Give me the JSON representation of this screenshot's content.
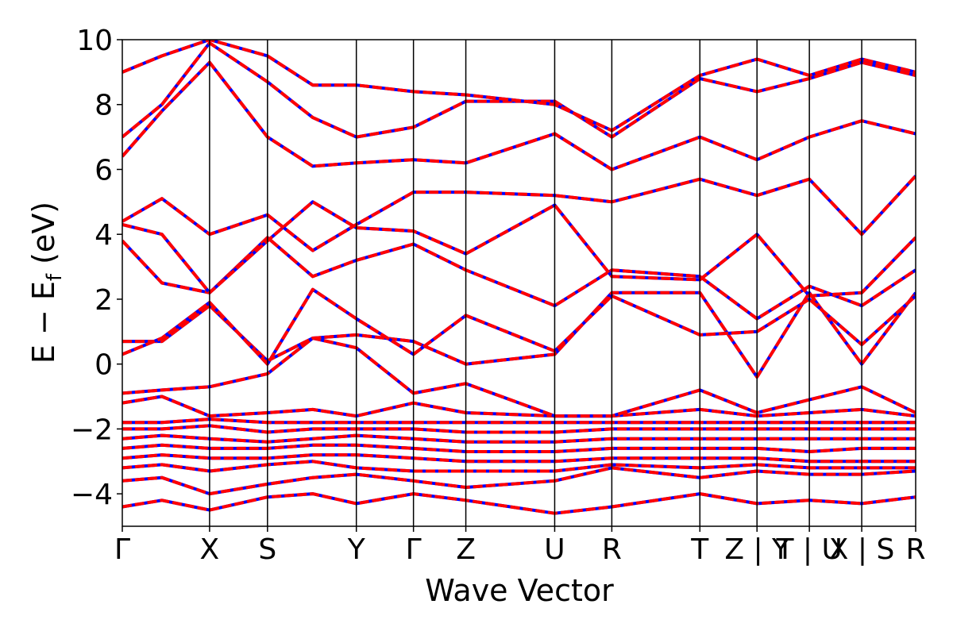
{
  "chart_data": {
    "type": "line",
    "title": "",
    "xlabel": "Wave Vector",
    "ylabel_main": "E − E",
    "ylabel_sub": "f",
    "ylabel_unit": " (eV)",
    "ylim": [
      -5,
      10
    ],
    "yticks": [
      -4,
      -2,
      0,
      2,
      4,
      6,
      8,
      10
    ],
    "ytick_labels": [
      "−4",
      "−2",
      "0",
      "2",
      "4",
      "6",
      "8",
      "10"
    ],
    "xlim": [
      0,
      1
    ],
    "kpoints": [
      {
        "label": "Γ",
        "pos": 0.0
      },
      {
        "label": "X",
        "pos": 0.11
      },
      {
        "label": "S",
        "pos": 0.183
      },
      {
        "label": "Y",
        "pos": 0.295
      },
      {
        "label": "Γ",
        "pos": 0.367
      },
      {
        "label": "Z",
        "pos": 0.433
      },
      {
        "label": "U",
        "pos": 0.545
      },
      {
        "label": "R",
        "pos": 0.617
      },
      {
        "label": "T",
        "pos": 0.728
      },
      {
        "label": "Z | Y",
        "pos": 0.8
      },
      {
        "label": "T | U",
        "pos": 0.866
      },
      {
        "label": "X | S",
        "pos": 0.932
      },
      {
        "label": "R",
        "pos": 1.0
      }
    ],
    "grid": false,
    "legend": "none",
    "series_style": [
      {
        "color": "#0000ff",
        "dash": "none"
      },
      {
        "color": "#ff0000",
        "dash": "dashed"
      }
    ],
    "bands": [
      [
        [
          0,
          -4.4
        ],
        [
          0.05,
          -4.2
        ],
        [
          0.11,
          -4.5
        ],
        [
          0.183,
          -4.1
        ],
        [
          0.24,
          -4.0
        ],
        [
          0.295,
          -4.3
        ],
        [
          0.367,
          -4.0
        ],
        [
          0.433,
          -4.2
        ],
        [
          0.545,
          -4.6
        ],
        [
          0.617,
          -4.4
        ],
        [
          0.728,
          -4.0
        ],
        [
          0.8,
          -4.3
        ],
        [
          0.866,
          -4.2
        ],
        [
          0.932,
          -4.3
        ],
        [
          1.0,
          -4.1
        ]
      ],
      [
        [
          0,
          -3.6
        ],
        [
          0.05,
          -3.5
        ],
        [
          0.11,
          -4.0
        ],
        [
          0.183,
          -3.7
        ],
        [
          0.24,
          -3.5
        ],
        [
          0.295,
          -3.4
        ],
        [
          0.367,
          -3.6
        ],
        [
          0.433,
          -3.8
        ],
        [
          0.545,
          -3.6
        ],
        [
          0.617,
          -3.2
        ],
        [
          0.728,
          -3.5
        ],
        [
          0.8,
          -3.3
        ],
        [
          0.866,
          -3.4
        ],
        [
          0.932,
          -3.4
        ],
        [
          1.0,
          -3.3
        ]
      ],
      [
        [
          0,
          -3.2
        ],
        [
          0.05,
          -3.1
        ],
        [
          0.11,
          -3.3
        ],
        [
          0.183,
          -3.1
        ],
        [
          0.24,
          -3.0
        ],
        [
          0.295,
          -3.2
        ],
        [
          0.367,
          -3.3
        ],
        [
          0.433,
          -3.3
        ],
        [
          0.545,
          -3.3
        ],
        [
          0.617,
          -3.1
        ],
        [
          0.728,
          -3.2
        ],
        [
          0.8,
          -3.1
        ],
        [
          0.866,
          -3.2
        ],
        [
          0.932,
          -3.2
        ],
        [
          1.0,
          -3.2
        ]
      ],
      [
        [
          0,
          -2.9
        ],
        [
          0.05,
          -2.8
        ],
        [
          0.11,
          -2.9
        ],
        [
          0.183,
          -2.9
        ],
        [
          0.24,
          -2.8
        ],
        [
          0.295,
          -2.8
        ],
        [
          0.367,
          -2.9
        ],
        [
          0.433,
          -3.0
        ],
        [
          0.545,
          -3.0
        ],
        [
          0.617,
          -2.9
        ],
        [
          0.728,
          -2.9
        ],
        [
          0.8,
          -2.9
        ],
        [
          0.866,
          -3.0
        ],
        [
          0.932,
          -3.0
        ],
        [
          1.0,
          -3.0
        ]
      ],
      [
        [
          0,
          -2.6
        ],
        [
          0.05,
          -2.5
        ],
        [
          0.11,
          -2.6
        ],
        [
          0.183,
          -2.6
        ],
        [
          0.24,
          -2.5
        ],
        [
          0.295,
          -2.5
        ],
        [
          0.367,
          -2.6
        ],
        [
          0.433,
          -2.7
        ],
        [
          0.545,
          -2.7
        ],
        [
          0.617,
          -2.6
        ],
        [
          0.728,
          -2.6
        ],
        [
          0.8,
          -2.6
        ],
        [
          0.866,
          -2.7
        ],
        [
          0.932,
          -2.6
        ],
        [
          1.0,
          -2.6
        ]
      ],
      [
        [
          0,
          -2.3
        ],
        [
          0.05,
          -2.2
        ],
        [
          0.11,
          -2.3
        ],
        [
          0.183,
          -2.4
        ],
        [
          0.24,
          -2.3
        ],
        [
          0.295,
          -2.2
        ],
        [
          0.367,
          -2.3
        ],
        [
          0.433,
          -2.4
        ],
        [
          0.545,
          -2.4
        ],
        [
          0.617,
          -2.3
        ],
        [
          0.728,
          -2.3
        ],
        [
          0.8,
          -2.3
        ],
        [
          0.866,
          -2.3
        ],
        [
          0.932,
          -2.3
        ],
        [
          1.0,
          -2.3
        ]
      ],
      [
        [
          0,
          -2.0
        ],
        [
          0.05,
          -2.0
        ],
        [
          0.11,
          -1.9
        ],
        [
          0.183,
          -2.1
        ],
        [
          0.24,
          -2.0
        ],
        [
          0.295,
          -2.0
        ],
        [
          0.367,
          -2.0
        ],
        [
          0.433,
          -2.1
        ],
        [
          0.545,
          -2.1
        ],
        [
          0.617,
          -2.0
        ],
        [
          0.728,
          -2.0
        ],
        [
          0.8,
          -2.0
        ],
        [
          0.866,
          -2.0
        ],
        [
          0.932,
          -2.0
        ],
        [
          1.0,
          -2.0
        ]
      ],
      [
        [
          0,
          -1.8
        ],
        [
          0.05,
          -1.8
        ],
        [
          0.11,
          -1.7
        ],
        [
          0.183,
          -1.8
        ],
        [
          0.24,
          -1.8
        ],
        [
          0.295,
          -1.8
        ],
        [
          0.367,
          -1.8
        ],
        [
          0.433,
          -1.8
        ],
        [
          0.545,
          -1.8
        ],
        [
          0.617,
          -1.8
        ],
        [
          0.728,
          -1.8
        ],
        [
          0.8,
          -1.8
        ],
        [
          0.866,
          -1.8
        ],
        [
          0.932,
          -1.8
        ],
        [
          1.0,
          -1.8
        ]
      ],
      [
        [
          0,
          -1.2
        ],
        [
          0.05,
          -1.0
        ],
        [
          0.11,
          -1.6
        ],
        [
          0.183,
          -1.5
        ],
        [
          0.24,
          -1.4
        ],
        [
          0.295,
          -1.6
        ],
        [
          0.367,
          -1.2
        ],
        [
          0.433,
          -1.5
        ],
        [
          0.545,
          -1.6
        ],
        [
          0.617,
          -1.6
        ],
        [
          0.728,
          -1.4
        ],
        [
          0.8,
          -1.6
        ],
        [
          0.866,
          -1.5
        ],
        [
          0.932,
          -1.4
        ],
        [
          1.0,
          -1.6
        ]
      ],
      [
        [
          0,
          -0.9
        ],
        [
          0.05,
          -0.8
        ],
        [
          0.11,
          -0.7
        ],
        [
          0.183,
          -0.3
        ],
        [
          0.24,
          0.8
        ],
        [
          0.295,
          0.5
        ],
        [
          0.367,
          -0.9
        ],
        [
          0.433,
          -0.6
        ],
        [
          0.545,
          -1.6
        ],
        [
          0.617,
          -1.6
        ],
        [
          0.728,
          -0.8
        ],
        [
          0.8,
          -1.5
        ],
        [
          0.866,
          -1.1
        ],
        [
          0.932,
          -0.7
        ],
        [
          1.0,
          -1.5
        ]
      ],
      [
        [
          0,
          0.7
        ],
        [
          0.05,
          0.7
        ],
        [
          0.11,
          1.8
        ],
        [
          0.183,
          0.1
        ],
        [
          0.24,
          0.8
        ],
        [
          0.295,
          0.9
        ],
        [
          0.367,
          0.7
        ],
        [
          0.433,
          0.0
        ],
        [
          0.545,
          0.3
        ],
        [
          0.617,
          2.2
        ],
        [
          0.728,
          2.2
        ],
        [
          0.8,
          -0.4
        ],
        [
          0.866,
          2.2
        ],
        [
          0.932,
          0.0
        ],
        [
          1.0,
          2.2
        ]
      ],
      [
        [
          0,
          0.3
        ],
        [
          0.05,
          0.8
        ],
        [
          0.11,
          1.9
        ],
        [
          0.183,
          0.0
        ],
        [
          0.24,
          2.3
        ],
        [
          0.295,
          1.4
        ],
        [
          0.367,
          0.3
        ],
        [
          0.433,
          1.5
        ],
        [
          0.545,
          0.4
        ],
        [
          0.617,
          2.1
        ],
        [
          0.728,
          0.9
        ],
        [
          0.8,
          1.0
        ],
        [
          0.866,
          2.0
        ],
        [
          0.932,
          0.6
        ],
        [
          1.0,
          2.1
        ]
      ],
      [
        [
          0,
          3.8
        ],
        [
          0.05,
          2.5
        ],
        [
          0.11,
          2.2
        ],
        [
          0.183,
          3.9
        ],
        [
          0.24,
          2.7
        ],
        [
          0.295,
          3.2
        ],
        [
          0.367,
          3.7
        ],
        [
          0.433,
          2.9
        ],
        [
          0.545,
          1.8
        ],
        [
          0.617,
          2.9
        ],
        [
          0.728,
          2.7
        ],
        [
          0.8,
          1.4
        ],
        [
          0.866,
          2.4
        ],
        [
          0.932,
          1.8
        ],
        [
          1.0,
          2.9
        ]
      ],
      [
        [
          0,
          4.3
        ],
        [
          0.05,
          4.0
        ],
        [
          0.11,
          2.2
        ],
        [
          0.183,
          3.8
        ],
        [
          0.24,
          5.0
        ],
        [
          0.295,
          4.2
        ],
        [
          0.367,
          4.1
        ],
        [
          0.433,
          3.4
        ],
        [
          0.545,
          4.9
        ],
        [
          0.617,
          2.7
        ],
        [
          0.728,
          2.6
        ],
        [
          0.8,
          4.0
        ],
        [
          0.866,
          2.1
        ],
        [
          0.932,
          2.2
        ],
        [
          1.0,
          3.9
        ]
      ],
      [
        [
          0,
          4.4
        ],
        [
          0.05,
          5.1
        ],
        [
          0.11,
          4.0
        ],
        [
          0.183,
          4.6
        ],
        [
          0.24,
          3.5
        ],
        [
          0.295,
          4.3
        ],
        [
          0.367,
          5.3
        ],
        [
          0.433,
          5.3
        ],
        [
          0.545,
          5.2
        ],
        [
          0.617,
          5.0
        ],
        [
          0.728,
          5.7
        ],
        [
          0.8,
          5.2
        ],
        [
          0.866,
          5.7
        ],
        [
          0.932,
          4.0
        ],
        [
          1.0,
          5.8
        ]
      ],
      [
        [
          0,
          6.4
        ],
        [
          0.05,
          7.8
        ],
        [
          0.11,
          9.3
        ],
        [
          0.183,
          7.0
        ],
        [
          0.24,
          6.1
        ],
        [
          0.295,
          6.2
        ],
        [
          0.367,
          6.3
        ],
        [
          0.433,
          6.2
        ],
        [
          0.545,
          7.1
        ],
        [
          0.617,
          6.0
        ],
        [
          0.728,
          7.0
        ],
        [
          0.8,
          6.3
        ],
        [
          0.866,
          7.0
        ],
        [
          0.932,
          7.5
        ],
        [
          1.0,
          7.1
        ]
      ],
      [
        [
          0,
          7.0
        ],
        [
          0.05,
          8.0
        ],
        [
          0.11,
          9.9
        ],
        [
          0.183,
          8.7
        ],
        [
          0.24,
          7.6
        ],
        [
          0.295,
          7.0
        ],
        [
          0.367,
          7.3
        ],
        [
          0.433,
          8.1
        ],
        [
          0.545,
          8.1
        ],
        [
          0.617,
          7.0
        ],
        [
          0.728,
          8.8
        ],
        [
          0.8,
          8.4
        ],
        [
          0.866,
          8.8
        ],
        [
          0.932,
          9.3
        ],
        [
          1.0,
          8.9
        ]
      ],
      [
        [
          0,
          9.0
        ],
        [
          0.05,
          9.5
        ],
        [
          0.11,
          10.0
        ],
        [
          0.183,
          9.5
        ],
        [
          0.24,
          8.6
        ],
        [
          0.295,
          8.6
        ],
        [
          0.367,
          8.4
        ],
        [
          0.433,
          8.3
        ],
        [
          0.545,
          8.0
        ],
        [
          0.617,
          7.2
        ],
        [
          0.728,
          8.9
        ],
        [
          0.8,
          9.4
        ],
        [
          0.866,
          8.9
        ],
        [
          0.932,
          9.4
        ],
        [
          1.0,
          9.0
        ]
      ]
    ]
  }
}
